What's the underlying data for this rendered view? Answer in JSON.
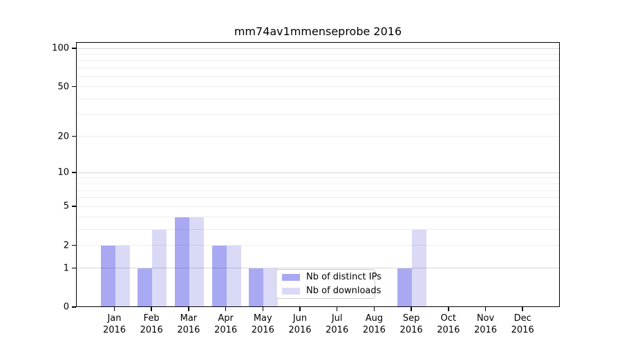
{
  "chart_data": {
    "type": "bar",
    "title": "mm74av1mmenseprobe 2016",
    "categories": [
      "Jan",
      "Feb",
      "Mar",
      "Apr",
      "May",
      "Jun",
      "Jul",
      "Aug",
      "Sep",
      "Oct",
      "Nov",
      "Dec"
    ],
    "category_sublabel": "2016",
    "series": [
      {
        "name": "Nb of distinct IPs",
        "color": "#a9a9f3",
        "values": [
          2,
          1,
          4,
          2,
          1,
          0,
          0,
          0,
          1,
          0,
          0,
          0
        ]
      },
      {
        "name": "Nb of downloads",
        "color": "#dadaf7",
        "values": [
          2,
          3,
          4,
          2,
          1,
          0,
          0,
          0,
          3,
          0,
          0,
          0
        ]
      }
    ],
    "yscale": "log10(1+v)",
    "ylim": [
      0,
      112
    ],
    "yticks": [
      0,
      1,
      2,
      5,
      10,
      20,
      50,
      100
    ],
    "major_gridlines": [
      1,
      10,
      100
    ],
    "minor_gridlines": [
      2,
      3,
      4,
      5,
      6,
      7,
      8,
      9,
      20,
      30,
      40,
      50,
      60,
      70,
      80,
      90
    ],
    "legend_position": "lower center",
    "grid": true
  },
  "colors": {
    "background": "#ffffff",
    "spine": "#000000",
    "text": "#000000",
    "major_grid": "rgba(0,0,0,0.16)",
    "minor_grid": "rgba(0,0,0,0.07)",
    "legend_border": "#cccccc",
    "legend_background": "rgba(255,255,255,0.8)"
  }
}
